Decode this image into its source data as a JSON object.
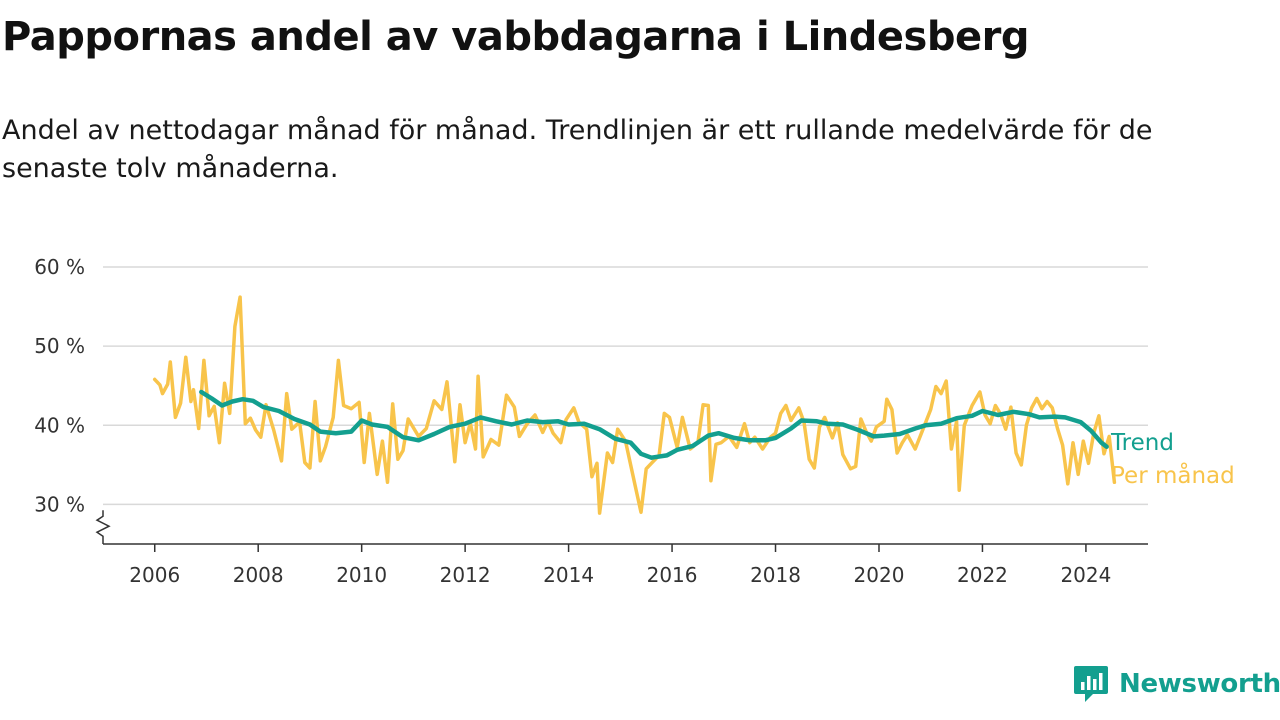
{
  "title": "Pappornas andel av vabbdagarna i Lindesberg",
  "subtitle": "Andel av nettodagar månad för månad. Trendlinjen är ett rullande medelvärde för de senaste tolv månaderna.",
  "brand": {
    "name": "Newsworthy",
    "icon": "newsworthy-logo-icon"
  },
  "colors": {
    "trend": "#139f8f",
    "monthly": "#f8c44b",
    "grid": "#d9d9d9",
    "axis": "#333333"
  },
  "chart_data": {
    "type": "line",
    "y_tick_labels": [
      "30 %",
      "40 %",
      "50 %",
      "60 %"
    ],
    "y_ticks": [
      30,
      40,
      50,
      60
    ],
    "ylim": [
      25,
      60
    ],
    "y_axis_break": true,
    "x_tick_labels": [
      "2006",
      "2008",
      "2010",
      "2012",
      "2014",
      "2016",
      "2018",
      "2020",
      "2022",
      "2024"
    ],
    "x_ticks": [
      2006,
      2008,
      2010,
      2012,
      2014,
      2016,
      2018,
      2020,
      2022,
      2024
    ],
    "xlim": [
      2005.0,
      2025.2
    ],
    "grid": true,
    "legend_position": "right-end-of-lines",
    "series": [
      {
        "name": "Trend",
        "points": [
          [
            2006.9,
            44.2
          ],
          [
            2007.1,
            43.4
          ],
          [
            2007.3,
            42.5
          ],
          [
            2007.5,
            43.0
          ],
          [
            2007.7,
            43.3
          ],
          [
            2007.9,
            43.1
          ],
          [
            2008.1,
            42.3
          ],
          [
            2008.4,
            41.8
          ],
          [
            2008.7,
            40.8
          ],
          [
            2009.0,
            40.1
          ],
          [
            2009.2,
            39.2
          ],
          [
            2009.5,
            39.0
          ],
          [
            2009.8,
            39.2
          ],
          [
            2010.0,
            40.6
          ],
          [
            2010.2,
            40.1
          ],
          [
            2010.5,
            39.8
          ],
          [
            2010.8,
            38.5
          ],
          [
            2011.1,
            38.1
          ],
          [
            2011.4,
            38.9
          ],
          [
            2011.7,
            39.8
          ],
          [
            2012.0,
            40.2
          ],
          [
            2012.3,
            41.0
          ],
          [
            2012.6,
            40.5
          ],
          [
            2012.9,
            40.1
          ],
          [
            2013.2,
            40.6
          ],
          [
            2013.5,
            40.4
          ],
          [
            2013.8,
            40.5
          ],
          [
            2014.0,
            40.1
          ],
          [
            2014.3,
            40.2
          ],
          [
            2014.6,
            39.5
          ],
          [
            2014.9,
            38.3
          ],
          [
            2015.2,
            37.8
          ],
          [
            2015.4,
            36.4
          ],
          [
            2015.6,
            35.9
          ],
          [
            2015.9,
            36.2
          ],
          [
            2016.1,
            36.9
          ],
          [
            2016.4,
            37.4
          ],
          [
            2016.7,
            38.7
          ],
          [
            2016.9,
            39.0
          ],
          [
            2017.2,
            38.4
          ],
          [
            2017.5,
            38.1
          ],
          [
            2017.8,
            38.1
          ],
          [
            2018.0,
            38.4
          ],
          [
            2018.3,
            39.6
          ],
          [
            2018.5,
            40.6
          ],
          [
            2018.8,
            40.5
          ],
          [
            2019.0,
            40.2
          ],
          [
            2019.3,
            40.1
          ],
          [
            2019.6,
            39.4
          ],
          [
            2019.9,
            38.6
          ],
          [
            2020.1,
            38.7
          ],
          [
            2020.4,
            38.9
          ],
          [
            2020.7,
            39.6
          ],
          [
            2020.9,
            40.0
          ],
          [
            2021.2,
            40.2
          ],
          [
            2021.5,
            40.9
          ],
          [
            2021.8,
            41.2
          ],
          [
            2022.0,
            41.8
          ],
          [
            2022.3,
            41.3
          ],
          [
            2022.6,
            41.7
          ],
          [
            2022.9,
            41.4
          ],
          [
            2023.1,
            41.0
          ],
          [
            2023.4,
            41.1
          ],
          [
            2023.6,
            41.0
          ],
          [
            2023.9,
            40.4
          ],
          [
            2024.1,
            39.3
          ],
          [
            2024.3,
            37.8
          ],
          [
            2024.4,
            37.3
          ]
        ]
      },
      {
        "name": "Per månad",
        "points": [
          [
            2006.0,
            45.8
          ],
          [
            2006.1,
            45.1
          ],
          [
            2006.15,
            44.0
          ],
          [
            2006.25,
            45.2
          ],
          [
            2006.3,
            48.0
          ],
          [
            2006.4,
            41.0
          ],
          [
            2006.5,
            42.8
          ],
          [
            2006.6,
            48.6
          ],
          [
            2006.7,
            43.0
          ],
          [
            2006.75,
            44.5
          ],
          [
            2006.85,
            39.6
          ],
          [
            2006.95,
            48.2
          ],
          [
            2007.05,
            41.2
          ],
          [
            2007.15,
            42.4
          ],
          [
            2007.25,
            37.8
          ],
          [
            2007.35,
            45.3
          ],
          [
            2007.45,
            41.5
          ],
          [
            2007.55,
            52.5
          ],
          [
            2007.65,
            56.2
          ],
          [
            2007.75,
            40.2
          ],
          [
            2007.85,
            40.9
          ],
          [
            2007.95,
            39.4
          ],
          [
            2008.05,
            38.5
          ],
          [
            2008.15,
            42.6
          ],
          [
            2008.3,
            39.4
          ],
          [
            2008.45,
            35.5
          ],
          [
            2008.55,
            44.0
          ],
          [
            2008.65,
            39.5
          ],
          [
            2008.8,
            40.4
          ],
          [
            2008.9,
            35.3
          ],
          [
            2009.0,
            34.6
          ],
          [
            2009.1,
            43.0
          ],
          [
            2009.2,
            35.5
          ],
          [
            2009.3,
            37.3
          ],
          [
            2009.45,
            41.0
          ],
          [
            2009.55,
            48.2
          ],
          [
            2009.65,
            42.5
          ],
          [
            2009.8,
            42.1
          ],
          [
            2009.95,
            42.9
          ],
          [
            2010.05,
            35.3
          ],
          [
            2010.15,
            41.5
          ],
          [
            2010.3,
            33.8
          ],
          [
            2010.4,
            38.0
          ],
          [
            2010.5,
            32.8
          ],
          [
            2010.6,
            42.7
          ],
          [
            2010.7,
            35.7
          ],
          [
            2010.8,
            36.8
          ],
          [
            2010.9,
            40.8
          ],
          [
            2011.1,
            38.6
          ],
          [
            2011.25,
            39.6
          ],
          [
            2011.4,
            43.1
          ],
          [
            2011.55,
            42.0
          ],
          [
            2011.65,
            45.5
          ],
          [
            2011.8,
            35.4
          ],
          [
            2011.9,
            42.6
          ],
          [
            2012.0,
            37.8
          ],
          [
            2012.1,
            40.3
          ],
          [
            2012.2,
            37.0
          ],
          [
            2012.25,
            46.2
          ],
          [
            2012.35,
            36.0
          ],
          [
            2012.5,
            38.2
          ],
          [
            2012.65,
            37.5
          ],
          [
            2012.8,
            43.8
          ],
          [
            2012.95,
            42.3
          ],
          [
            2013.05,
            38.6
          ],
          [
            2013.2,
            40.2
          ],
          [
            2013.35,
            41.3
          ],
          [
            2013.5,
            39.1
          ],
          [
            2013.6,
            40.5
          ],
          [
            2013.7,
            39.0
          ],
          [
            2013.85,
            37.8
          ],
          [
            2013.95,
            40.7
          ],
          [
            2014.1,
            42.2
          ],
          [
            2014.2,
            40.4
          ],
          [
            2014.35,
            39.5
          ],
          [
            2014.45,
            33.5
          ],
          [
            2014.55,
            35.2
          ],
          [
            2014.6,
            28.9
          ],
          [
            2014.75,
            36.5
          ],
          [
            2014.85,
            35.3
          ],
          [
            2014.95,
            39.5
          ],
          [
            2015.1,
            38.0
          ],
          [
            2015.3,
            32.0
          ],
          [
            2015.4,
            29.0
          ],
          [
            2015.5,
            34.5
          ],
          [
            2015.6,
            35.2
          ],
          [
            2015.75,
            36.2
          ],
          [
            2015.85,
            41.5
          ],
          [
            2015.95,
            41.0
          ],
          [
            2016.1,
            37.2
          ],
          [
            2016.2,
            41.0
          ],
          [
            2016.35,
            37.0
          ],
          [
            2016.5,
            37.8
          ],
          [
            2016.6,
            42.6
          ],
          [
            2016.7,
            42.5
          ],
          [
            2016.75,
            33.0
          ],
          [
            2016.85,
            37.6
          ],
          [
            2016.95,
            37.8
          ],
          [
            2017.1,
            38.6
          ],
          [
            2017.25,
            37.2
          ],
          [
            2017.4,
            40.2
          ],
          [
            2017.5,
            37.8
          ],
          [
            2017.6,
            38.5
          ],
          [
            2017.75,
            37.0
          ],
          [
            2017.9,
            38.5
          ],
          [
            2018.0,
            39.0
          ],
          [
            2018.1,
            41.5
          ],
          [
            2018.2,
            42.5
          ],
          [
            2018.3,
            40.6
          ],
          [
            2018.45,
            42.2
          ],
          [
            2018.55,
            40.4
          ],
          [
            2018.65,
            35.7
          ],
          [
            2018.75,
            34.6
          ],
          [
            2018.85,
            39.8
          ],
          [
            2018.95,
            41.0
          ],
          [
            2019.1,
            38.4
          ],
          [
            2019.2,
            40.3
          ],
          [
            2019.3,
            36.3
          ],
          [
            2019.45,
            34.5
          ],
          [
            2019.55,
            34.8
          ],
          [
            2019.65,
            40.8
          ],
          [
            2019.75,
            39.2
          ],
          [
            2019.85,
            38.0
          ],
          [
            2019.95,
            39.8
          ],
          [
            2020.1,
            40.5
          ],
          [
            2020.15,
            43.3
          ],
          [
            2020.25,
            42.0
          ],
          [
            2020.35,
            36.5
          ],
          [
            2020.45,
            37.8
          ],
          [
            2020.55,
            38.8
          ],
          [
            2020.7,
            37.0
          ],
          [
            2020.85,
            39.5
          ],
          [
            2021.0,
            42.0
          ],
          [
            2021.1,
            44.9
          ],
          [
            2021.2,
            44.0
          ],
          [
            2021.3,
            45.6
          ],
          [
            2021.4,
            37.0
          ],
          [
            2021.5,
            40.5
          ],
          [
            2021.55,
            31.8
          ],
          [
            2021.65,
            40.0
          ],
          [
            2021.8,
            42.5
          ],
          [
            2021.95,
            44.2
          ],
          [
            2022.05,
            41.3
          ],
          [
            2022.15,
            40.2
          ],
          [
            2022.25,
            42.5
          ],
          [
            2022.35,
            41.4
          ],
          [
            2022.45,
            39.5
          ],
          [
            2022.55,
            42.3
          ],
          [
            2022.65,
            36.5
          ],
          [
            2022.75,
            35.0
          ],
          [
            2022.85,
            40.0
          ],
          [
            2022.95,
            42.2
          ],
          [
            2023.05,
            43.4
          ],
          [
            2023.15,
            42.1
          ],
          [
            2023.25,
            43.0
          ],
          [
            2023.35,
            42.2
          ],
          [
            2023.45,
            39.6
          ],
          [
            2023.55,
            37.5
          ],
          [
            2023.65,
            32.6
          ],
          [
            2023.75,
            37.8
          ],
          [
            2023.85,
            33.8
          ],
          [
            2023.95,
            38.0
          ],
          [
            2024.05,
            35.2
          ],
          [
            2024.15,
            39.0
          ],
          [
            2024.25,
            41.2
          ],
          [
            2024.35,
            36.4
          ],
          [
            2024.45,
            38.6
          ],
          [
            2024.55,
            32.8
          ]
        ]
      }
    ]
  }
}
